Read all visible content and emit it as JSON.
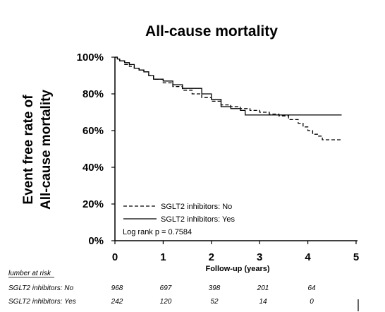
{
  "chart_data": {
    "type": "line",
    "title": "All-cause mortality",
    "ylabel_lines": [
      "Event free rate of",
      "All-cause mortality"
    ],
    "xlabel": "Follow-up (years)",
    "x_ticks": [
      "0",
      "1",
      "2",
      "3",
      "4",
      "5"
    ],
    "y_ticks": [
      "0%",
      "20%",
      "40%",
      "60%",
      "80%",
      "100%"
    ],
    "xlim": [
      0,
      5
    ],
    "ylim": [
      0,
      100
    ],
    "grid": false,
    "legend_position": "bottom-left",
    "series": [
      {
        "name": "SGLT2 inhibitors: No",
        "style": "dashed",
        "color": "#000000",
        "x": [
          0,
          0.05,
          0.1,
          0.2,
          0.3,
          0.4,
          0.5,
          0.6,
          0.7,
          0.8,
          1.0,
          1.2,
          1.4,
          1.6,
          1.8,
          2.0,
          2.2,
          2.4,
          2.6,
          2.8,
          3.0,
          3.2,
          3.4,
          3.6,
          3.8,
          3.9,
          4.0,
          4.1,
          4.2,
          4.3,
          4.5,
          4.7
        ],
        "y": [
          100,
          99,
          98,
          96,
          95,
          94,
          93,
          92,
          90,
          88,
          86,
          84,
          82,
          80,
          78,
          76,
          74,
          73,
          72,
          71,
          70,
          69,
          68,
          66,
          64,
          62,
          60,
          58,
          57,
          55,
          55,
          55
        ]
      },
      {
        "name": "SGLT2 inhibitors: Yes",
        "style": "solid",
        "color": "#000000",
        "x": [
          0,
          0.05,
          0.1,
          0.2,
          0.3,
          0.4,
          0.5,
          0.6,
          0.7,
          0.8,
          1.0,
          1.2,
          1.4,
          1.6,
          1.8,
          2.0,
          2.2,
          2.4,
          2.6,
          2.7,
          3.0,
          3.5,
          4.0,
          4.7
        ],
        "y": [
          100,
          99,
          98,
          97,
          96,
          94,
          93,
          92,
          90,
          88,
          87,
          85,
          83,
          83,
          80,
          77,
          73,
          72,
          71,
          68.5,
          68.5,
          68.5,
          68.5,
          68.5
        ]
      }
    ],
    "annotation": "Log rank p = 0.7584"
  },
  "risk_table": {
    "header": "lumber at risk",
    "rows": [
      {
        "label": "SGLT2 inhibitors: No",
        "values": [
          "968",
          "697",
          "398",
          "201",
          "64"
        ]
      },
      {
        "label": "SGLT2 inhibitors: Yes",
        "values": [
          "242",
          "120",
          "52",
          "14",
          "0"
        ]
      }
    ]
  }
}
